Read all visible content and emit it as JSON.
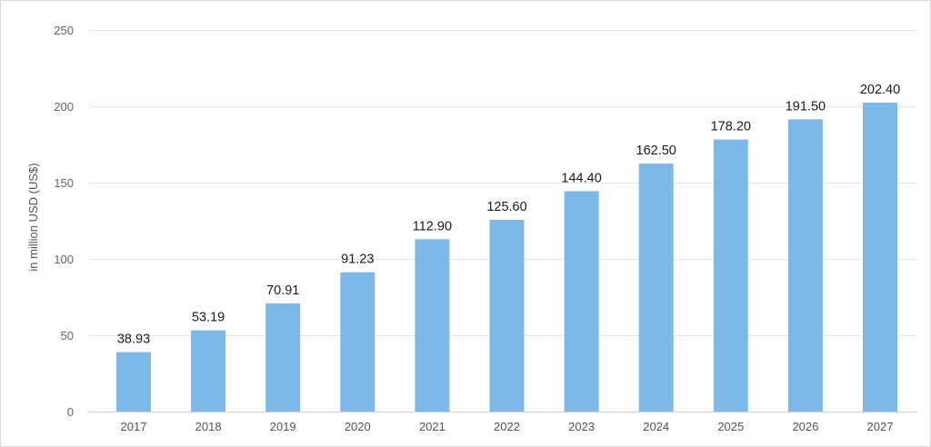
{
  "chart_data": {
    "type": "bar",
    "categories": [
      "2017",
      "2018",
      "2019",
      "2020",
      "2021",
      "2022",
      "2023",
      "2024",
      "2025",
      "2026",
      "2027"
    ],
    "values": [
      38.93,
      53.19,
      70.91,
      91.23,
      112.9,
      125.6,
      144.4,
      162.5,
      178.2,
      191.5,
      202.4
    ],
    "data_labels": [
      "38.93",
      "53.19",
      "70.91",
      "91.23",
      "112.90",
      "125.60",
      "144.40",
      "162.50",
      "178.20",
      "191.50",
      "202.40"
    ],
    "yticks": [
      0,
      50,
      100,
      150,
      200,
      250
    ],
    "title": "",
    "xlabel": "",
    "ylabel": "in million USD (US$)",
    "ylim": [
      0,
      250
    ],
    "grid": true,
    "bar_color": "#7cb9e8"
  }
}
